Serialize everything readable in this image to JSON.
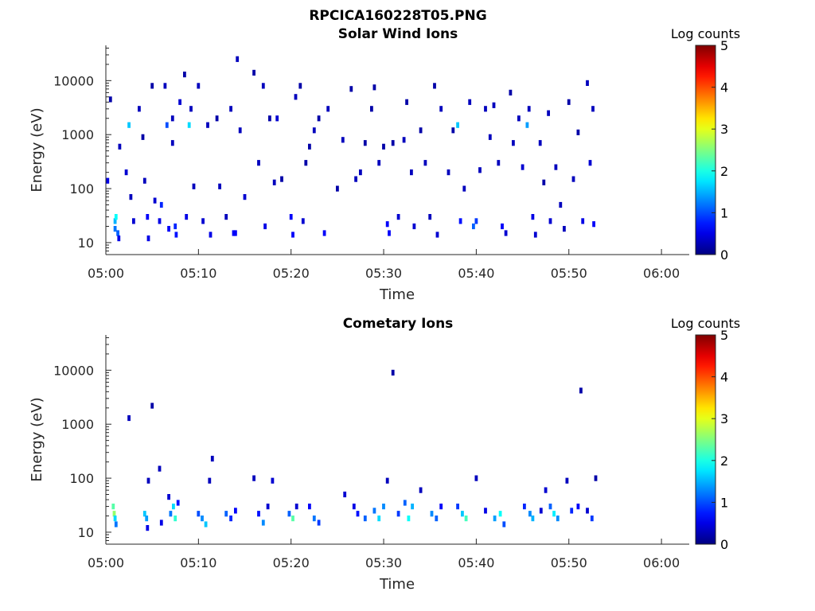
{
  "figure": {
    "title": "RPCICA160228T05.PNG"
  },
  "chart_data": [
    {
      "type": "heatmap",
      "title": "Solar Wind Ions",
      "xlabel": "Time",
      "ylabel": "Energy (eV)",
      "x_range_min": [
        0,
        63
      ],
      "y_range_ev": [
        6,
        45000
      ],
      "y_scale": "log",
      "x_tick_values_min": [
        0,
        10,
        20,
        30,
        40,
        50,
        60
      ],
      "x_tick_labels": [
        "05:00",
        "05:10",
        "05:20",
        "05:30",
        "05:40",
        "05:50",
        "06:00"
      ],
      "y_tick_values": [
        10,
        100,
        1000,
        10000
      ],
      "y_tick_labels": [
        "10",
        "100",
        "1000",
        "10000"
      ],
      "colorbar": {
        "label": "Log counts",
        "range": [
          0,
          5
        ],
        "ticks": [
          "0",
          "1",
          "2",
          "3",
          "4",
          "5"
        ]
      },
      "cells": [
        [
          0.2,
          140,
          0.5
        ],
        [
          0.5,
          4500,
          0.2
        ],
        [
          1.0,
          25,
          1.5
        ],
        [
          1.0,
          18,
          1.2
        ],
        [
          1.1,
          30,
          1.9
        ],
        [
          1.3,
          15,
          1.1
        ],
        [
          1.4,
          12,
          0.5
        ],
        [
          1.5,
          600,
          0.3
        ],
        [
          2.2,
          200,
          0.4
        ],
        [
          2.5,
          1500,
          1.6
        ],
        [
          2.7,
          70,
          0.3
        ],
        [
          3.0,
          25,
          0.4
        ],
        [
          3.6,
          3000,
          0.3
        ],
        [
          4.0,
          900,
          0.2
        ],
        [
          4.2,
          140,
          0.3
        ],
        [
          4.5,
          30,
          0.6
        ],
        [
          4.6,
          12,
          0.5
        ],
        [
          5.0,
          8000,
          0.2
        ],
        [
          5.3,
          60,
          0.4
        ],
        [
          5.8,
          25,
          0.5
        ],
        [
          6.0,
          50,
          0.8
        ],
        [
          6.4,
          8000,
          0.3
        ],
        [
          6.6,
          1500,
          1.0
        ],
        [
          6.8,
          18,
          0.6
        ],
        [
          7.2,
          2000,
          0.3
        ],
        [
          7.2,
          700,
          0.3
        ],
        [
          7.5,
          20,
          0.8
        ],
        [
          7.6,
          14,
          0.7
        ],
        [
          8.0,
          4000,
          0.4
        ],
        [
          8.5,
          13000,
          0.2
        ],
        [
          8.7,
          30,
          0.5
        ],
        [
          9.0,
          1500,
          1.7
        ],
        [
          9.2,
          3000,
          0.3
        ],
        [
          9.5,
          110,
          0.3
        ],
        [
          10.0,
          8000,
          0.3
        ],
        [
          10.5,
          25,
          0.4
        ],
        [
          11.0,
          1500,
          0.3
        ],
        [
          11.3,
          14,
          0.5
        ],
        [
          12.0,
          2000,
          0.2
        ],
        [
          12.3,
          110,
          0.3
        ],
        [
          13.0,
          30,
          0.3
        ],
        [
          13.5,
          3000,
          0.3
        ],
        [
          13.8,
          15,
          0.6
        ],
        [
          14.0,
          15,
          0.6
        ],
        [
          14.2,
          25000,
          0.3
        ],
        [
          14.5,
          1200,
          0.3
        ],
        [
          15.0,
          70,
          0.4
        ],
        [
          16.0,
          14000,
          0.2
        ],
        [
          16.5,
          300,
          0.3
        ],
        [
          17.0,
          8000,
          0.3
        ],
        [
          17.2,
          20,
          0.5
        ],
        [
          17.7,
          2000,
          0.2
        ],
        [
          18.2,
          130,
          0.3
        ],
        [
          18.5,
          2000,
          0.4
        ],
        [
          19.0,
          150,
          0.2
        ],
        [
          20.0,
          30,
          0.6
        ],
        [
          20.2,
          14,
          0.6
        ],
        [
          20.5,
          5000,
          0.3
        ],
        [
          21.0,
          8000,
          0.2
        ],
        [
          21.3,
          25,
          0.4
        ],
        [
          21.6,
          300,
          0.2
        ],
        [
          22.0,
          600,
          0.2
        ],
        [
          22.5,
          1200,
          0.3
        ],
        [
          23.0,
          2000,
          0.2
        ],
        [
          23.6,
          15,
          0.6
        ],
        [
          24.0,
          3000,
          0.3
        ],
        [
          25.0,
          100,
          0.2
        ],
        [
          25.6,
          800,
          0.3
        ],
        [
          26.5,
          7000,
          0.2
        ],
        [
          27.0,
          150,
          0.3
        ],
        [
          27.5,
          200,
          0.3
        ],
        [
          28.0,
          700,
          0.2
        ],
        [
          28.7,
          3000,
          0.2
        ],
        [
          29.0,
          7500,
          0.2
        ],
        [
          29.5,
          300,
          0.3
        ],
        [
          30.0,
          600,
          0.2
        ],
        [
          30.4,
          22,
          0.6
        ],
        [
          30.6,
          15,
          0.6
        ],
        [
          31.0,
          700,
          0.2
        ],
        [
          31.6,
          30,
          0.4
        ],
        [
          32.2,
          800,
          0.3
        ],
        [
          32.5,
          4000,
          0.2
        ],
        [
          33.0,
          200,
          0.3
        ],
        [
          33.3,
          20,
          0.4
        ],
        [
          34.0,
          1200,
          0.2
        ],
        [
          34.5,
          300,
          0.3
        ],
        [
          35.0,
          30,
          0.3
        ],
        [
          35.5,
          8000,
          0.2
        ],
        [
          35.8,
          14,
          0.4
        ],
        [
          36.2,
          3000,
          0.3
        ],
        [
          37.0,
          200,
          0.3
        ],
        [
          37.5,
          1200,
          0.2
        ],
        [
          38.0,
          1500,
          1.6
        ],
        [
          38.3,
          25,
          0.7
        ],
        [
          38.7,
          100,
          0.3
        ],
        [
          39.3,
          4000,
          0.3
        ],
        [
          39.7,
          20,
          1.1
        ],
        [
          40.0,
          25,
          0.9
        ],
        [
          40.4,
          220,
          0.3
        ],
        [
          41.0,
          3000,
          0.3
        ],
        [
          41.5,
          900,
          0.3
        ],
        [
          41.9,
          3500,
          0.3
        ],
        [
          42.4,
          300,
          0.3
        ],
        [
          42.8,
          20,
          0.6
        ],
        [
          43.2,
          15,
          0.4
        ],
        [
          43.7,
          6000,
          0.2
        ],
        [
          44.0,
          700,
          0.3
        ],
        [
          44.6,
          2000,
          0.3
        ],
        [
          45.0,
          250,
          0.4
        ],
        [
          45.5,
          1500,
          1.4
        ],
        [
          45.7,
          3000,
          0.3
        ],
        [
          46.1,
          30,
          0.5
        ],
        [
          46.4,
          14,
          0.4
        ],
        [
          46.9,
          700,
          0.3
        ],
        [
          47.3,
          130,
          0.2
        ],
        [
          47.8,
          2500,
          0.3
        ],
        [
          48.0,
          25,
          0.4
        ],
        [
          48.6,
          250,
          0.3
        ],
        [
          49.1,
          50,
          0.3
        ],
        [
          49.5,
          18,
          0.3
        ],
        [
          50.0,
          4000,
          0.2
        ],
        [
          50.5,
          150,
          0.3
        ],
        [
          51.0,
          1100,
          0.2
        ],
        [
          51.5,
          25,
          0.5
        ],
        [
          52.0,
          9000,
          0.3
        ],
        [
          52.3,
          300,
          0.4
        ],
        [
          52.6,
          3000,
          0.3
        ],
        [
          52.7,
          22,
          0.6
        ]
      ]
    },
    {
      "type": "heatmap",
      "title": "Cometary Ions",
      "xlabel": "Time",
      "ylabel": "Energy (eV)",
      "x_range_min": [
        0,
        63
      ],
      "y_range_ev": [
        6,
        45000
      ],
      "y_scale": "log",
      "x_tick_values_min": [
        0,
        10,
        20,
        30,
        40,
        50,
        60
      ],
      "x_tick_labels": [
        "05:00",
        "05:10",
        "05:20",
        "05:30",
        "05:40",
        "05:50",
        "06:00"
      ],
      "y_tick_values": [
        10,
        100,
        1000,
        10000
      ],
      "y_tick_labels": [
        "10",
        "100",
        "1000",
        "10000"
      ],
      "colorbar": {
        "label": "Log counts",
        "range": [
          0,
          5
        ],
        "ticks": [
          "0",
          "1",
          "2",
          "3",
          "4",
          "5"
        ]
      },
      "cells": [
        [
          0.8,
          30,
          2.3
        ],
        [
          0.9,
          22,
          2.6
        ],
        [
          1.0,
          18,
          1.7
        ],
        [
          1.1,
          14,
          1.2
        ],
        [
          2.5,
          1300,
          0.3
        ],
        [
          4.2,
          22,
          1.6
        ],
        [
          4.4,
          18,
          1.4
        ],
        [
          4.5,
          12,
          0.5
        ],
        [
          4.6,
          90,
          0.3
        ],
        [
          5.0,
          2200,
          0.2
        ],
        [
          5.8,
          150,
          0.3
        ],
        [
          6.0,
          15,
          0.5
        ],
        [
          6.8,
          45,
          0.4
        ],
        [
          7.0,
          22,
          1.2
        ],
        [
          7.3,
          30,
          1.7
        ],
        [
          7.5,
          18,
          2.1
        ],
        [
          7.8,
          35,
          0.7
        ],
        [
          10.0,
          22,
          1.0
        ],
        [
          10.4,
          18,
          1.3
        ],
        [
          10.8,
          14,
          1.6
        ],
        [
          11.2,
          90,
          0.3
        ],
        [
          11.5,
          230,
          0.3
        ],
        [
          13.0,
          22,
          1.1
        ],
        [
          13.5,
          18,
          0.8
        ],
        [
          14.0,
          25,
          0.6
        ],
        [
          16.0,
          100,
          0.3
        ],
        [
          16.5,
          22,
          0.7
        ],
        [
          17.0,
          15,
          1.3
        ],
        [
          17.5,
          30,
          0.4
        ],
        [
          18.0,
          90,
          0.4
        ],
        [
          19.8,
          22,
          1.1
        ],
        [
          20.2,
          18,
          2.3
        ],
        [
          20.6,
          30,
          0.4
        ],
        [
          22.0,
          30,
          0.6
        ],
        [
          22.5,
          18,
          1.2
        ],
        [
          23.0,
          15,
          0.9
        ],
        [
          25.8,
          50,
          0.4
        ],
        [
          26.8,
          30,
          0.5
        ],
        [
          27.2,
          22,
          0.7
        ],
        [
          28.0,
          18,
          1.1
        ],
        [
          29.0,
          25,
          1.2
        ],
        [
          29.5,
          18,
          1.7
        ],
        [
          30.0,
          30,
          1.3
        ],
        [
          30.4,
          90,
          0.3
        ],
        [
          31.0,
          9000,
          0.2
        ],
        [
          31.6,
          22,
          0.9
        ],
        [
          32.3,
          35,
          1.1
        ],
        [
          32.7,
          18,
          1.9
        ],
        [
          33.1,
          30,
          1.5
        ],
        [
          34.0,
          60,
          0.3
        ],
        [
          35.2,
          22,
          1.3
        ],
        [
          35.7,
          18,
          1.1
        ],
        [
          36.2,
          30,
          0.6
        ],
        [
          38.0,
          30,
          0.9
        ],
        [
          38.5,
          22,
          1.6
        ],
        [
          38.9,
          18,
          2.2
        ],
        [
          40.0,
          100,
          0.3
        ],
        [
          41.0,
          25,
          0.5
        ],
        [
          42.0,
          18,
          1.4
        ],
        [
          42.6,
          22,
          1.9
        ],
        [
          43.0,
          14,
          1.0
        ],
        [
          45.2,
          30,
          0.8
        ],
        [
          45.8,
          22,
          1.3
        ],
        [
          46.1,
          18,
          1.5
        ],
        [
          47.0,
          25,
          0.4
        ],
        [
          47.5,
          60,
          0.4
        ],
        [
          48.0,
          30,
          1.1
        ],
        [
          48.4,
          22,
          1.8
        ],
        [
          48.8,
          18,
          1.3
        ],
        [
          49.8,
          90,
          0.3
        ],
        [
          50.3,
          25,
          0.8
        ],
        [
          51.0,
          30,
          0.6
        ],
        [
          51.3,
          4200,
          0.2
        ],
        [
          52.0,
          25,
          0.4
        ],
        [
          52.5,
          18,
          0.9
        ],
        [
          52.9,
          100,
          0.2
        ]
      ]
    }
  ]
}
